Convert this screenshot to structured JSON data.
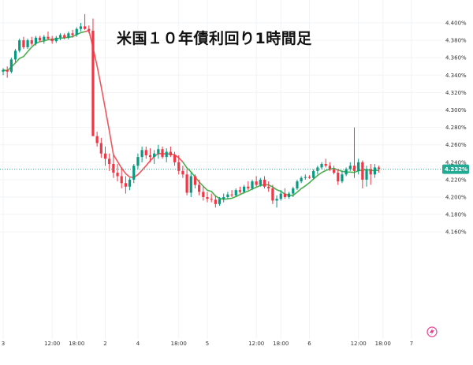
{
  "title": "米国１０年債利回り1時間足",
  "colors": {
    "up": "#089981",
    "down": "#F23645",
    "ma_early": "#4CAF50",
    "ma_mid": "#F0565C",
    "current": "#22AB94",
    "grid": "#F2F3F5",
    "text": "#333333",
    "icon": "#E8408F"
  },
  "icons": {
    "bottom_right": "lightning-bolt-icon"
  },
  "chart_data": {
    "type": "candlestick",
    "title": "米国１０年債利回り1時間足",
    "xlabel": "",
    "ylabel": "",
    "ylim": [
      4.155,
      4.405
    ],
    "y_ticks": [
      "4.400%",
      "4.380%",
      "4.360%",
      "4.340%",
      "4.320%",
      "4.300%",
      "4.280%",
      "4.260%",
      "4.240%",
      "4.220%",
      "4.200%",
      "4.180%",
      "4.160%"
    ],
    "x_ticks": [
      {
        "label": "3",
        "bar": 0
      },
      {
        "label": "12:00",
        "bar": 12
      },
      {
        "label": "18:00",
        "bar": 18
      },
      {
        "label": "2",
        "bar": 25
      },
      {
        "label": "4",
        "bar": 33
      },
      {
        "label": "18:00",
        "bar": 43
      },
      {
        "label": "5",
        "bar": 50
      },
      {
        "label": "12:00",
        "bar": 62
      },
      {
        "label": "18:00",
        "bar": 68
      },
      {
        "label": "6",
        "bar": 75
      },
      {
        "label": "12:00",
        "bar": 87
      },
      {
        "label": "18:00",
        "bar": 93
      },
      {
        "label": "7",
        "bar": 100
      }
    ],
    "current_value": "4.232%",
    "current": 4.232,
    "ma_split_bar": 20,
    "ohlc": [
      [
        4.344,
        4.348,
        4.34,
        4.346
      ],
      [
        4.346,
        4.35,
        4.337,
        4.344
      ],
      [
        4.344,
        4.36,
        4.342,
        4.358
      ],
      [
        4.358,
        4.37,
        4.355,
        4.368
      ],
      [
        4.368,
        4.382,
        4.366,
        4.38
      ],
      [
        4.38,
        4.384,
        4.37,
        4.372
      ],
      [
        4.372,
        4.382,
        4.37,
        4.38
      ],
      [
        4.38,
        4.384,
        4.374,
        4.376
      ],
      [
        4.376,
        4.385,
        4.374,
        4.383
      ],
      [
        4.383,
        4.385,
        4.378,
        4.38
      ],
      [
        4.38,
        4.386,
        4.376,
        4.384
      ],
      [
        4.384,
        4.39,
        4.38,
        4.382
      ],
      [
        4.382,
        4.385,
        4.376,
        4.379
      ],
      [
        4.379,
        4.385,
        4.377,
        4.383
      ],
      [
        4.383,
        4.388,
        4.38,
        4.386
      ],
      [
        4.386,
        4.388,
        4.381,
        4.383
      ],
      [
        4.383,
        4.39,
        4.381,
        4.388
      ],
      [
        4.388,
        4.392,
        4.383,
        4.386
      ],
      [
        4.386,
        4.395,
        4.384,
        4.393
      ],
      [
        4.393,
        4.4,
        4.39,
        4.396
      ],
      [
        4.396,
        4.41,
        4.392,
        4.393
      ],
      [
        4.393,
        4.397,
        4.388,
        4.391
      ],
      [
        4.391,
        4.405,
        4.27,
        4.27
      ],
      [
        4.27,
        4.275,
        4.258,
        4.262
      ],
      [
        4.262,
        4.268,
        4.245,
        4.25
      ],
      [
        4.25,
        4.258,
        4.236,
        4.244
      ],
      [
        4.244,
        4.25,
        4.23,
        4.238
      ],
      [
        4.238,
        4.248,
        4.222,
        4.228
      ],
      [
        4.228,
        4.238,
        4.218,
        4.224
      ],
      [
        4.224,
        4.234,
        4.21,
        4.216
      ],
      [
        4.216,
        4.224,
        4.204,
        4.212
      ],
      [
        4.212,
        4.222,
        4.208,
        4.22
      ],
      [
        4.22,
        4.238,
        4.216,
        4.236
      ],
      [
        4.236,
        4.25,
        4.232,
        4.246
      ],
      [
        4.246,
        4.258,
        4.24,
        4.254
      ],
      [
        4.254,
        4.258,
        4.244,
        4.248
      ],
      [
        4.248,
        4.256,
        4.24,
        4.246
      ],
      [
        4.246,
        4.254,
        4.238,
        4.25
      ],
      [
        4.25,
        4.26,
        4.244,
        4.255
      ],
      [
        4.255,
        4.258,
        4.244,
        4.246
      ],
      [
        4.246,
        4.256,
        4.24,
        4.252
      ],
      [
        4.252,
        4.258,
        4.246,
        4.248
      ],
      [
        4.248,
        4.252,
        4.236,
        4.24
      ],
      [
        4.24,
        4.248,
        4.226,
        4.23
      ],
      [
        4.23,
        4.236,
        4.222,
        4.226
      ],
      [
        4.226,
        4.232,
        4.202,
        4.205
      ],
      [
        4.205,
        4.228,
        4.2,
        4.224
      ],
      [
        4.224,
        4.226,
        4.21,
        4.214
      ],
      [
        4.214,
        4.22,
        4.202,
        4.206
      ],
      [
        4.206,
        4.212,
        4.196,
        4.2
      ],
      [
        4.2,
        4.206,
        4.194,
        4.198
      ],
      [
        4.198,
        4.204,
        4.194,
        4.197
      ],
      [
        4.197,
        4.202,
        4.188,
        4.192
      ],
      [
        4.192,
        4.2,
        4.19,
        4.198
      ],
      [
        4.198,
        4.204,
        4.194,
        4.2
      ],
      [
        4.2,
        4.206,
        4.198,
        4.203
      ],
      [
        4.203,
        4.208,
        4.2,
        4.202
      ],
      [
        4.202,
        4.21,
        4.2,
        4.208
      ],
      [
        4.208,
        4.212,
        4.204,
        4.206
      ],
      [
        4.206,
        4.214,
        4.204,
        4.212
      ],
      [
        4.212,
        4.218,
        4.208,
        4.21
      ],
      [
        4.21,
        4.22,
        4.208,
        4.218
      ],
      [
        4.218,
        4.224,
        4.212,
        4.214
      ],
      [
        4.214,
        4.222,
        4.212,
        4.22
      ],
      [
        4.22,
        4.224,
        4.21,
        4.212
      ],
      [
        4.212,
        4.218,
        4.206,
        4.21
      ],
      [
        4.21,
        4.214,
        4.192,
        4.196
      ],
      [
        4.196,
        4.202,
        4.188,
        4.198
      ],
      [
        4.198,
        4.208,
        4.196,
        4.204
      ],
      [
        4.204,
        4.21,
        4.198,
        4.2
      ],
      [
        4.2,
        4.206,
        4.198,
        4.204
      ],
      [
        4.204,
        4.212,
        4.2,
        4.21
      ],
      [
        4.21,
        4.22,
        4.208,
        4.218
      ],
      [
        4.218,
        4.224,
        4.216,
        4.222
      ],
      [
        4.222,
        4.226,
        4.22,
        4.223
      ],
      [
        4.223,
        4.225,
        4.221,
        4.222
      ],
      [
        4.222,
        4.232,
        4.22,
        4.23
      ],
      [
        4.23,
        4.236,
        4.226,
        4.234
      ],
      [
        4.234,
        4.24,
        4.232,
        4.238
      ],
      [
        4.238,
        4.244,
        4.234,
        4.236
      ],
      [
        4.236,
        4.24,
        4.23,
        4.232
      ],
      [
        4.232,
        4.236,
        4.226,
        4.228
      ],
      [
        4.228,
        4.232,
        4.214,
        4.218
      ],
      [
        4.218,
        4.23,
        4.216,
        4.226
      ],
      [
        4.226,
        4.234,
        4.224,
        4.232
      ],
      [
        4.232,
        4.24,
        4.23,
        4.236
      ],
      [
        4.236,
        4.28,
        4.222,
        4.23
      ],
      [
        4.23,
        4.244,
        4.226,
        4.24
      ],
      [
        4.24,
        4.242,
        4.21,
        4.22
      ],
      [
        4.22,
        4.236,
        4.212,
        4.232
      ],
      [
        4.232,
        4.238,
        4.214,
        4.226
      ],
      [
        4.226,
        4.238,
        4.222,
        4.234
      ],
      [
        4.234,
        4.236,
        4.228,
        4.232
      ]
    ]
  }
}
